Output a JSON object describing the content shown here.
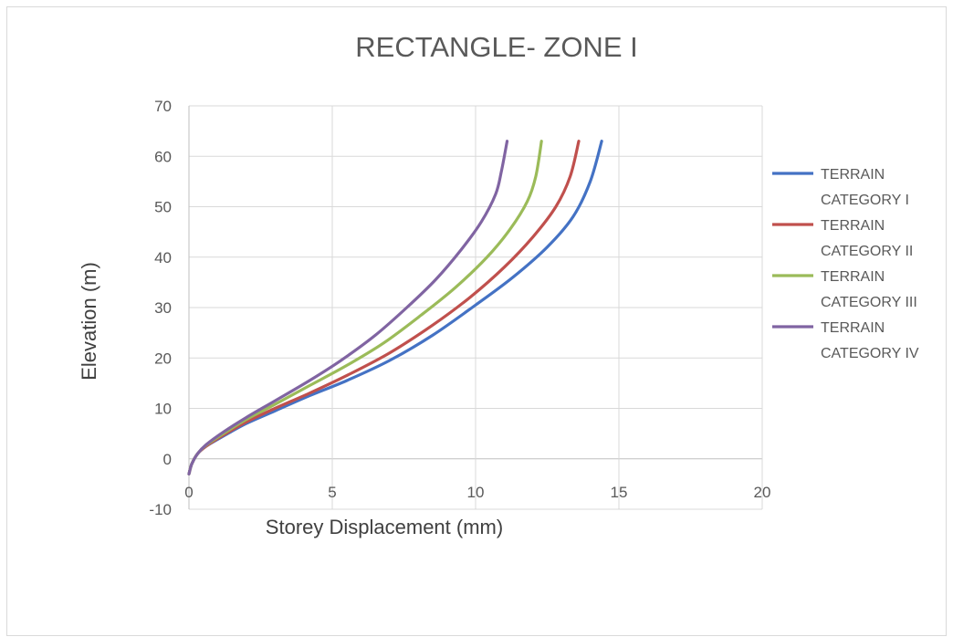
{
  "chart_data": {
    "type": "line",
    "title": "RECTANGLE- ZONE I",
    "xlabel": "Storey Displacement (mm)",
    "ylabel": "Elevation (m)",
    "xlim": [
      0,
      20
    ],
    "ylim": [
      -10,
      70
    ],
    "xticks": [
      "0",
      "5",
      "10",
      "15",
      "20"
    ],
    "yticks": [
      "-10",
      "0",
      "10",
      "20",
      "30",
      "40",
      "50",
      "60",
      "70"
    ],
    "grid": true,
    "legend_position": "right",
    "series": [
      {
        "name": "TERRAIN CATEGORY I",
        "color": "#4472C4",
        "x": [
          0.0,
          0.1,
          0.3,
          0.6,
          1.2,
          2.0,
          3.0,
          4.2,
          5.5,
          7.0,
          8.5,
          10.0,
          11.3,
          12.5,
          13.4,
          14.0,
          14.4
        ],
        "y": [
          -3,
          -1,
          1,
          2.5,
          4.5,
          7,
          9.5,
          12.5,
          15.5,
          19.5,
          24.5,
          30.5,
          36,
          42,
          48,
          55,
          63
        ]
      },
      {
        "name": "TERRAIN CATEGORY II",
        "color": "#C0504D",
        "x": [
          0.0,
          0.1,
          0.3,
          0.6,
          1.2,
          2.0,
          3.0,
          4.2,
          5.5,
          7.0,
          8.5,
          9.8,
          11.0,
          12.0,
          12.8,
          13.3,
          13.6
        ],
        "y": [
          -3,
          -1,
          1,
          2.5,
          4.7,
          7.3,
          10,
          13,
          16.5,
          21,
          26.5,
          32,
          38,
          44,
          50,
          56,
          63
        ]
      },
      {
        "name": "TERRAIN CATEGORY III",
        "color": "#9BBB59",
        "x": [
          0.0,
          0.1,
          0.3,
          0.6,
          1.2,
          2.0,
          3.0,
          4.2,
          5.5,
          6.8,
          8.1,
          9.3,
          10.4,
          11.2,
          11.8,
          12.1,
          12.3
        ],
        "y": [
          -3,
          -1,
          1,
          2.7,
          5,
          7.8,
          10.8,
          14.5,
          18.5,
          23,
          28.5,
          34,
          40,
          45.5,
          51,
          56,
          63
        ]
      },
      {
        "name": "TERRAIN CATEGORY IV",
        "color": "#8064A2",
        "x": [
          0.0,
          0.1,
          0.3,
          0.6,
          1.2,
          2.0,
          3.0,
          4.2,
          5.3,
          6.5,
          7.6,
          8.6,
          9.5,
          10.2,
          10.7,
          10.9,
          11.1
        ],
        "y": [
          -3,
          -1,
          1,
          2.8,
          5.3,
          8.2,
          11.5,
          15.5,
          19.5,
          24.5,
          30,
          35.5,
          41.5,
          47,
          52.5,
          57,
          63
        ]
      }
    ]
  }
}
